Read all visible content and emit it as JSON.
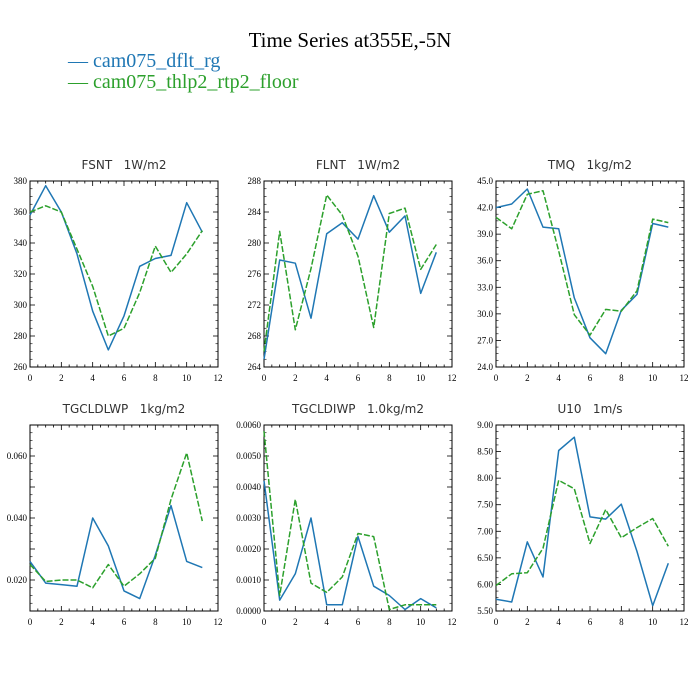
{
  "page": {
    "title": "Time Series at355E,-5N",
    "legend": [
      {
        "label": "— cam075_dflt_rg",
        "color": "#1f77b4"
      },
      {
        "label": "— cam075_thlp2_rtp2_floor",
        "color": "#2ca02c"
      }
    ]
  },
  "chart_data": [
    {
      "type": "line",
      "title": "FSNT   1W/m2",
      "xlim": [
        0,
        12
      ],
      "ylim": [
        260,
        380
      ],
      "xticks": [
        0,
        2,
        4,
        6,
        8,
        10,
        12
      ],
      "yticks": [
        "260",
        "280",
        "300",
        "320",
        "340",
        "360",
        "380"
      ],
      "x": [
        0,
        1,
        2,
        3,
        4,
        5,
        6,
        7,
        8,
        9,
        10,
        11
      ],
      "series": [
        {
          "name": "cam075_dflt_rg",
          "color": "#1f77b4",
          "values": [
            358,
            377,
            360,
            333,
            296,
            271,
            293,
            325,
            330,
            332,
            366,
            347
          ]
        },
        {
          "name": "cam075_thlp2_rtp2_floor",
          "color": "#2ca02c",
          "values": [
            360,
            364,
            360,
            336,
            312,
            280,
            285,
            308,
            338,
            321,
            333,
            348
          ]
        }
      ]
    },
    {
      "type": "line",
      "title": "FLNT   1W/m2",
      "xlim": [
        0,
        12
      ],
      "ylim": [
        264,
        288
      ],
      "xticks": [
        0,
        2,
        4,
        6,
        8,
        10,
        12
      ],
      "yticks": [
        "264",
        "268",
        "272",
        "276",
        "280",
        "284",
        "288"
      ],
      "x": [
        0,
        1,
        2,
        3,
        4,
        5,
        6,
        7,
        8,
        9,
        10,
        11
      ],
      "series": [
        {
          "name": "cam075_dflt_rg",
          "color": "#1f77b4",
          "values": [
            265,
            277.8,
            277.4,
            270.3,
            281.2,
            282.6,
            280.5,
            286.1,
            281.4,
            283.5,
            273.5,
            278.8
          ]
        },
        {
          "name": "cam075_thlp2_rtp2_floor",
          "color": "#2ca02c",
          "values": [
            266,
            281.5,
            268.8,
            276.7,
            286.2,
            283.6,
            278.3,
            269.1,
            283.8,
            284.5,
            276.6,
            279.8
          ]
        }
      ]
    },
    {
      "type": "line",
      "title": "TMQ   1kg/m2",
      "xlim": [
        0,
        12
      ],
      "ylim": [
        24.0,
        45.0
      ],
      "xticks": [
        0,
        2,
        4,
        6,
        8,
        10,
        12
      ],
      "yticks": [
        "24.0",
        "27.0",
        "30.0",
        "33.0",
        "36.0",
        "39.0",
        "42.0",
        "45.0"
      ],
      "x": [
        0,
        1,
        2,
        3,
        4,
        5,
        6,
        7,
        8,
        9,
        10,
        11
      ],
      "series": [
        {
          "name": "cam075_dflt_rg",
          "color": "#1f77b4",
          "values": [
            42.0,
            42.4,
            44.1,
            39.8,
            39.6,
            31.8,
            27.3,
            25.5,
            30.4,
            32.2,
            40.2,
            39.8
          ]
        },
        {
          "name": "cam075_thlp2_rtp2_floor",
          "color": "#2ca02c",
          "values": [
            40.9,
            39.6,
            43.5,
            43.9,
            37.1,
            29.9,
            27.6,
            30.5,
            30.3,
            32.6,
            40.7,
            40.3
          ]
        }
      ]
    },
    {
      "type": "line",
      "title": "TGCLDLWP   1kg/m2",
      "xlim": [
        0,
        12
      ],
      "ylim": [
        0.01,
        0.07
      ],
      "xticks": [
        0,
        2,
        4,
        6,
        8,
        10,
        12
      ],
      "yticks": [
        "",
        "0.020",
        "",
        "0.040",
        "",
        "0.060",
        ""
      ],
      "x": [
        0,
        1,
        2,
        3,
        4,
        5,
        6,
        7,
        8,
        9,
        10,
        11
      ],
      "series": [
        {
          "name": "cam075_dflt_rg",
          "color": "#1f77b4",
          "values": [
            0.026,
            0.019,
            0.0185,
            0.018,
            0.04,
            0.031,
            0.0165,
            0.014,
            0.028,
            0.044,
            0.026,
            0.024
          ]
        },
        {
          "name": "cam075_thlp2_rtp2_floor",
          "color": "#2ca02c",
          "values": [
            0.025,
            0.0195,
            0.02,
            0.02,
            0.0175,
            0.025,
            0.018,
            0.022,
            0.027,
            0.046,
            0.061,
            0.039
          ]
        }
      ]
    },
    {
      "type": "line",
      "title": "TGCLDIWP   1.0kg/m2",
      "xlim": [
        0,
        12
      ],
      "ylim": [
        0,
        0.006
      ],
      "xticks": [
        0,
        2,
        4,
        6,
        8,
        10,
        12
      ],
      "yticks": [
        "0.0000",
        "0.0010",
        "0.0020",
        "0.0030",
        "0.0040",
        "0.0050",
        "0.0060"
      ],
      "x": [
        0,
        1,
        2,
        3,
        4,
        5,
        6,
        7,
        8,
        9,
        10,
        11
      ],
      "series": [
        {
          "name": "cam075_dflt_rg",
          "color": "#1f77b4",
          "values": [
            0.0042,
            0.00035,
            0.0012,
            0.003,
            0.0002,
            0.0002,
            0.0024,
            0.0008,
            0.0005,
            5e-05,
            0.0004,
            0.0001
          ]
        },
        {
          "name": "cam075_thlp2_rtp2_floor",
          "color": "#2ca02c",
          "values": [
            0.0058,
            0.0005,
            0.0036,
            0.0009,
            0.0006,
            0.0011,
            0.0025,
            0.0024,
            5e-05,
            0.0002,
            0.0002,
            0.0002
          ]
        }
      ]
    },
    {
      "type": "line",
      "title": "U10   1m/s",
      "xlim": [
        0,
        12
      ],
      "ylim": [
        5.5,
        9.0
      ],
      "xticks": [
        0,
        2,
        4,
        6,
        8,
        10,
        12
      ],
      "yticks": [
        "5.50",
        "6.00",
        "6.50",
        "7.00",
        "7.50",
        "8.00",
        "8.50",
        "9.00"
      ],
      "x": [
        0,
        1,
        2,
        3,
        4,
        5,
        6,
        7,
        8,
        9,
        10,
        11
      ],
      "series": [
        {
          "name": "cam075_dflt_rg",
          "color": "#1f77b4",
          "values": [
            5.72,
            5.67,
            6.8,
            6.14,
            8.52,
            8.77,
            7.27,
            7.23,
            7.51,
            6.62,
            5.6,
            6.4
          ]
        },
        {
          "name": "cam075_thlp2_rtp2_floor",
          "color": "#2ca02c",
          "values": [
            5.98,
            6.2,
            6.22,
            6.68,
            7.96,
            7.8,
            6.77,
            7.41,
            6.88,
            7.07,
            7.24,
            6.72
          ]
        }
      ]
    }
  ]
}
